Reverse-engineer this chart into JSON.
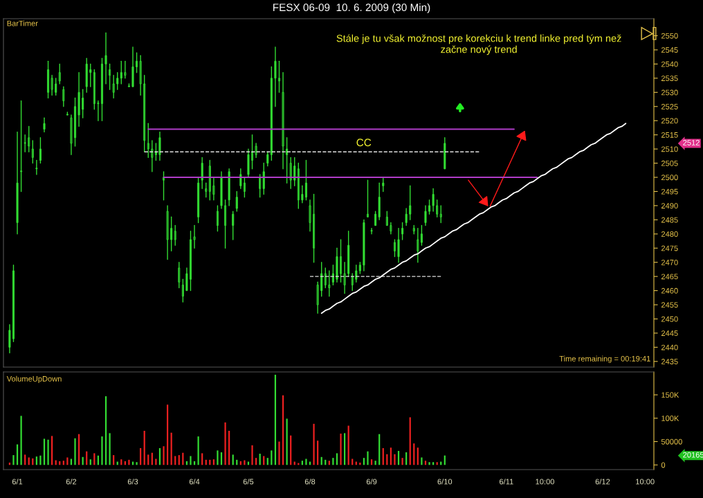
{
  "chart_data": [
    {
      "type": "candlestick",
      "title": "FESX 06-09  10. 6. 2009 (30 Min)",
      "color": "#33dd33",
      "categories": [
        null,
        null,
        null,
        null,
        null,
        null,
        null,
        null,
        null,
        null,
        null,
        null,
        null,
        null,
        null,
        null,
        null,
        null,
        null,
        null,
        null,
        null,
        null,
        null,
        null,
        null,
        null,
        null,
        null,
        null,
        null,
        null,
        null,
        null,
        null,
        null,
        null,
        null,
        null,
        null,
        null,
        null,
        null,
        null,
        null,
        null,
        null,
        null,
        null,
        null,
        null,
        null,
        null,
        null,
        null,
        null,
        null,
        null,
        null,
        null,
        null,
        null,
        null,
        null,
        null,
        null,
        null,
        null,
        null,
        null,
        null,
        null,
        null,
        null,
        null,
        null,
        null,
        null,
        null,
        null,
        null,
        null,
        null,
        null,
        null,
        null,
        null,
        null,
        null,
        null,
        null,
        null,
        null,
        null,
        null,
        null,
        null,
        null,
        null,
        null,
        null,
        null,
        null,
        null,
        null,
        null,
        null,
        null,
        null,
        null,
        null,
        null,
        null,
        null,
        null,
        null,
        null,
        null,
        null,
        null,
        null,
        null,
        null,
        null,
        null,
        null,
        null,
        null,
        null,
        null,
        null,
        null,
        null,
        null,
        null,
        null,
        null,
        null,
        null,
        null,
        null,
        null,
        null,
        null,
        null,
        null,
        null,
        null,
        null,
        null,
        null,
        null,
        null,
        null,
        null,
        null,
        null,
        null,
        null,
        null,
        null,
        null,
        null,
        null,
        null,
        null,
        null
      ],
      "ohlc": [
        [
          2440,
          2448,
          2438,
          2446
        ],
        [
          2443,
          2469,
          2442,
          2467
        ],
        [
          2484,
          2516,
          2480,
          2498
        ],
        [
          2502,
          2527,
          2495,
          2502
        ],
        [
          2512,
          2515,
          2509,
          2512
        ],
        [
          2514,
          2518,
          2509,
          2511
        ],
        [
          2510,
          2513,
          2505,
          2507
        ],
        [
          2503,
          2506,
          2501,
          2503
        ],
        [
          2506,
          2514,
          2505,
          2510
        ],
        [
          2517,
          2521,
          2516,
          2519
        ],
        [
          2530,
          2541,
          2528,
          2538
        ],
        [
          2535,
          2536,
          2529,
          2531
        ],
        [
          2530,
          2535,
          2529,
          2533
        ],
        [
          2537,
          2540,
          2533,
          2534
        ],
        [
          2531,
          2532,
          2525,
          2527
        ],
        [
          2522,
          2523,
          2522,
          2522
        ],
        [
          2521,
          2522,
          2508,
          2512
        ],
        [
          2514,
          2528,
          2511,
          2525
        ],
        [
          2522,
          2537,
          2518,
          2530
        ],
        [
          2524,
          2531,
          2521,
          2528
        ],
        [
          2532,
          2542,
          2530,
          2540
        ],
        [
          2537,
          2540,
          2532,
          2538
        ],
        [
          2537,
          2538,
          2524,
          2526
        ],
        [
          2526,
          2527,
          2520,
          2526
        ],
        [
          2526,
          2542,
          2520,
          2540
        ],
        [
          2540,
          2551,
          2533,
          2543
        ],
        [
          2538,
          2540,
          2531,
          2536
        ],
        [
          2533,
          2536,
          2528,
          2530
        ],
        [
          2533,
          2537,
          2531,
          2535
        ],
        [
          2535,
          2541,
          2533,
          2537
        ],
        [
          2537,
          2541,
          2535,
          2536
        ],
        [
          2532,
          2533,
          2532,
          2532
        ],
        [
          2532,
          2546,
          2532,
          2539
        ],
        [
          2539,
          2544,
          2537,
          2541
        ],
        [
          2541,
          2543,
          2529,
          2533
        ],
        [
          2533,
          2536,
          2509,
          2513
        ],
        [
          2512,
          2519,
          2507,
          2510
        ],
        [
          2510,
          2513,
          2502,
          2507
        ],
        [
          2508,
          2512,
          2506,
          2509
        ],
        [
          2508,
          2516,
          2506,
          2514
        ],
        [
          2500,
          2502,
          2492,
          2499
        ],
        [
          2488,
          2490,
          2471,
          2478
        ],
        [
          2478,
          2486,
          2474,
          2482
        ],
        [
          2481,
          2483,
          2476,
          2478
        ],
        [
          2468,
          2470,
          2461,
          2463
        ],
        [
          2462,
          2464,
          2456,
          2458
        ],
        [
          2460,
          2468,
          2460,
          2466
        ],
        [
          2464,
          2481,
          2460,
          2478
        ],
        [
          2479,
          2483,
          2475,
          2478
        ],
        [
          2486,
          2500,
          2484,
          2498
        ],
        [
          2499,
          2507,
          2496,
          2505
        ],
        [
          2496,
          2498,
          2493,
          2495
        ],
        [
          2504,
          2506,
          2492,
          2495
        ],
        [
          2497,
          2500,
          2492,
          2494
        ],
        [
          2488,
          2490,
          2481,
          2483
        ],
        [
          2490,
          2502,
          2489,
          2500
        ],
        [
          2490,
          2492,
          2475,
          2483
        ],
        [
          2492,
          2503,
          2490,
          2502
        ],
        [
          2483,
          2488,
          2478,
          2487
        ],
        [
          2489,
          2495,
          2488,
          2493
        ],
        [
          2497,
          2503,
          2496,
          2501
        ],
        [
          2498,
          2500,
          2493,
          2495
        ],
        [
          2501,
          2510,
          2500,
          2508
        ],
        [
          2509,
          2515,
          2503,
          2506
        ],
        [
          2511,
          2512,
          2507,
          2508
        ],
        [
          2500,
          2501,
          2493,
          2496
        ],
        [
          2496,
          2505,
          2494,
          2502
        ],
        [
          2505,
          2509,
          2504,
          2508
        ],
        [
          2508,
          2539,
          2506,
          2535
        ],
        [
          2535,
          2546,
          2525,
          2541
        ],
        [
          2535,
          2541,
          2530,
          2534
        ],
        [
          2530,
          2537,
          2503,
          2511
        ],
        [
          2508,
          2514,
          2498,
          2510
        ],
        [
          2505,
          2507,
          2496,
          2499
        ],
        [
          2499,
          2507,
          2497,
          2504
        ],
        [
          2503,
          2505,
          2489,
          2492
        ],
        [
          2492,
          2497,
          2491,
          2494
        ],
        [
          2493,
          2506,
          2492,
          2498
        ],
        [
          2490,
          2492,
          2481,
          2484
        ],
        [
          2487,
          2494,
          2470,
          2475
        ],
        [
          2462,
          2463,
          2452,
          2455
        ],
        [
          2460,
          2470,
          2458,
          2466
        ],
        [
          2466,
          2468,
          2461,
          2462
        ],
        [
          2462,
          2467,
          2458,
          2461
        ],
        [
          2463,
          2469,
          2462,
          2466
        ],
        [
          2464,
          2475,
          2463,
          2472
        ],
        [
          2472,
          2478,
          2463,
          2466
        ],
        [
          2466,
          2470,
          2459,
          2462
        ],
        [
          2466,
          2481,
          2465,
          2476
        ],
        [
          2465,
          2466,
          2460,
          2462
        ],
        [
          2464,
          2469,
          2463,
          2467
        ],
        [
          2467,
          2470,
          2466,
          2469
        ],
        [
          2469,
          2485,
          2467,
          2484
        ],
        [
          2487,
          2499,
          2486,
          2486
        ],
        [
          2481,
          2482,
          2480,
          2481
        ],
        [
          2483,
          2488,
          2483,
          2487
        ],
        [
          2486,
          2498,
          2485,
          2493
        ],
        [
          2497,
          2500,
          2495,
          2498
        ],
        [
          2486,
          2488,
          2483,
          2483
        ],
        [
          2483,
          2484,
          2480,
          2481
        ],
        [
          2477,
          2478,
          2472,
          2474
        ],
        [
          2472,
          2482,
          2470,
          2478
        ],
        [
          2480,
          2484,
          2478,
          2482
        ],
        [
          2484,
          2489,
          2483,
          2487
        ],
        [
          2487,
          2497,
          2485,
          2490
        ],
        [
          2482,
          2483,
          2480,
          2481
        ],
        [
          2478,
          2482,
          2470,
          2474
        ],
        [
          2477,
          2483,
          2476,
          2480
        ],
        [
          2484,
          2490,
          2483,
          2488
        ],
        [
          2488,
          2492,
          2487,
          2490
        ],
        [
          2490,
          2496,
          2488,
          2494
        ],
        [
          2490,
          2492,
          2486,
          2487
        ],
        [
          2487,
          2490,
          2484,
          2486
        ],
        [
          2503,
          2514,
          2503,
          2512
        ],
        null,
        null,
        null,
        null,
        null,
        null,
        null,
        null,
        null,
        null,
        null,
        null,
        null,
        null,
        null,
        null,
        null,
        null,
        null,
        null,
        null,
        null,
        null,
        null,
        null,
        null,
        null,
        null,
        null,
        null,
        null,
        null,
        null,
        null,
        null,
        null,
        null,
        null,
        null,
        null,
        null,
        null,
        null,
        null,
        null,
        null,
        null,
        null,
        null,
        null,
        null,
        null,
        null
      ],
      "series": [
        {
          "type": "line",
          "color": "#b03cc8",
          "line_style": "solid",
          "values": [
            null,
            null,
            null,
            null,
            null,
            null,
            null,
            null,
            null,
            null,
            null,
            null,
            null,
            null,
            null,
            null,
            null,
            null,
            null,
            null,
            null,
            null,
            null,
            null,
            null,
            null,
            null,
            null,
            null,
            null,
            null,
            null,
            null,
            null,
            null,
            null,
            2517,
            2517,
            2517,
            2517,
            2517,
            2517,
            2517,
            2517,
            2517,
            2517,
            2517,
            2517,
            2517,
            2517,
            2517,
            2517,
            2517,
            2517,
            2517,
            2517,
            2517,
            2517,
            2517,
            2517,
            2517,
            2517,
            2517,
            2517,
            2517,
            2517,
            2517,
            2517,
            2517,
            2517,
            2517,
            2517,
            2517,
            2517,
            2517,
            2517,
            2517,
            2517,
            2517,
            2517,
            2517,
            2517,
            2517,
            2517,
            2517,
            2517,
            2517,
            2517,
            2517,
            2517,
            2517,
            2517,
            2517,
            2517,
            2517,
            2517,
            2517,
            2517,
            2517,
            2517,
            2517,
            2517,
            2517,
            2517,
            2517,
            2517,
            2517,
            2517,
            2517,
            2517,
            2517,
            2517,
            2517,
            2517,
            2517,
            2517,
            2517,
            2517,
            2517,
            2517,
            2517,
            2517,
            2517,
            2517,
            2517,
            2517,
            2517,
            2517,
            2517,
            2517,
            2517,
            2517,
            null,
            null,
            null,
            null,
            null,
            null,
            null,
            null,
            null,
            null,
            null,
            null,
            null,
            null,
            null,
            null,
            null,
            null,
            null,
            null,
            null,
            null,
            null,
            null,
            null,
            null,
            null,
            null,
            null,
            null,
            null,
            null,
            null,
            null,
            null
          ]
        },
        {
          "type": "line",
          "color": "#b03cc8",
          "line_style": "solid",
          "values": [
            null,
            null,
            null,
            null,
            null,
            null,
            null,
            null,
            null,
            null,
            null,
            null,
            null,
            null,
            null,
            null,
            null,
            null,
            null,
            null,
            null,
            null,
            null,
            null,
            null,
            null,
            null,
            null,
            null,
            null,
            null,
            null,
            null,
            null,
            null,
            null,
            null,
            null,
            null,
            null,
            2500,
            2500,
            2500,
            2500,
            2500,
            2500,
            2500,
            2500,
            2500,
            2500,
            2500,
            2500,
            2500,
            2500,
            2500,
            2500,
            2500,
            2500,
            2500,
            2500,
            2500,
            2500,
            2500,
            2500,
            2500,
            2500,
            2500,
            2500,
            2500,
            2500,
            2500,
            2500,
            2500,
            2500,
            2500,
            2500,
            2500,
            2500,
            2500,
            2500,
            2500,
            2500,
            2500,
            2500,
            2500,
            2500,
            2500,
            2500,
            2500,
            2500,
            2500,
            2500,
            2500,
            2500,
            2500,
            2500,
            2500,
            2500,
            2500,
            2500,
            2500,
            2500,
            2500,
            2500,
            2500,
            2500,
            2500,
            2500,
            2500,
            2500,
            2500,
            2500,
            2500,
            2500,
            2500,
            2500,
            2500,
            2500,
            2500,
            2500,
            2500,
            2500,
            2500,
            2500,
            2500,
            2500,
            2500,
            2500,
            2500,
            2500,
            2500,
            2500,
            2500,
            2500,
            2500,
            2500,
            2500,
            2500,
            null,
            null,
            null,
            null,
            null,
            null,
            null,
            null,
            null,
            null,
            null,
            null,
            null,
            null,
            null,
            null,
            null,
            null,
            null,
            null,
            null,
            null,
            null,
            null,
            null,
            null,
            null,
            null,
            null
          ]
        },
        {
          "type": "line",
          "color": "#e0e0e0",
          "line_style": "dashed",
          "values": [
            null,
            null,
            null,
            null,
            null,
            null,
            null,
            null,
            null,
            null,
            null,
            null,
            null,
            null,
            null,
            null,
            null,
            null,
            null,
            null,
            null,
            null,
            null,
            null,
            null,
            null,
            null,
            null,
            null,
            null,
            null,
            null,
            null,
            null,
            null,
            2509,
            2509,
            2509,
            2509,
            2509,
            2509,
            2509,
            2509,
            2509,
            2509,
            2509,
            2509,
            2509,
            2509,
            2509,
            2509,
            2509,
            2509,
            2509,
            2509,
            2509,
            2509,
            2509,
            2509,
            2509,
            2509,
            2509,
            2509,
            2509,
            2509,
            2509,
            2509,
            2509,
            2509,
            2509,
            2509,
            2509,
            2509,
            2509,
            2509,
            2509,
            2509,
            2509,
            2509,
            2509,
            2509,
            2509,
            2509,
            2509,
            2509,
            2509,
            2509,
            2509,
            2509,
            2509,
            2509,
            2509,
            2509,
            2509,
            2509,
            2509,
            2509,
            2509,
            2509,
            2509,
            2509,
            2509,
            2509,
            2509,
            2509,
            2509,
            2509,
            2509,
            2509,
            2509,
            2509,
            2509,
            2509,
            2509,
            2509,
            2509,
            2509,
            2509,
            2509,
            2509,
            2509,
            2509,
            2509,
            null,
            null,
            null,
            null,
            null,
            null,
            null,
            null,
            null,
            null,
            null,
            null,
            null,
            null,
            null,
            null,
            null,
            null,
            null,
            null,
            null,
            null,
            null,
            null,
            null,
            null,
            null,
            null,
            null,
            null,
            null,
            null,
            null,
            null,
            null,
            null,
            null,
            null,
            null,
            null,
            null,
            null,
            null,
            null
          ]
        },
        {
          "type": "line",
          "color": "#e0e0e0",
          "line_style": "dashed",
          "values": [
            null,
            null,
            null,
            null,
            null,
            null,
            null,
            null,
            null,
            null,
            null,
            null,
            null,
            null,
            null,
            null,
            null,
            null,
            null,
            null,
            null,
            null,
            null,
            null,
            null,
            null,
            null,
            null,
            null,
            null,
            null,
            null,
            null,
            null,
            null,
            null,
            null,
            null,
            null,
            null,
            null,
            null,
            null,
            null,
            null,
            null,
            null,
            null,
            null,
            null,
            null,
            null,
            null,
            null,
            null,
            null,
            null,
            null,
            null,
            null,
            null,
            null,
            null,
            null,
            null,
            null,
            null,
            null,
            null,
            null,
            null,
            null,
            null,
            null,
            null,
            null,
            null,
            null,
            2465,
            2465,
            2465,
            2465,
            2465,
            2465,
            2465,
            2465,
            2465,
            2465,
            2465,
            2465,
            2465,
            2465,
            2465,
            2465,
            2465,
            2465,
            2465,
            2465,
            2465,
            2465,
            2465,
            2465,
            2465,
            2465,
            2465,
            2465,
            2465,
            2465,
            2465,
            2465,
            2465,
            2465,
            2465,
            null,
            null,
            null,
            null,
            null,
            null,
            null,
            null,
            null,
            null,
            null,
            null,
            null,
            null,
            null,
            null,
            null,
            null,
            null,
            null,
            null,
            null,
            null,
            null,
            null,
            null,
            null,
            null,
            null,
            null,
            null,
            null,
            null,
            null,
            null,
            null,
            null,
            null,
            null,
            null,
            null,
            null,
            null,
            null,
            null,
            null,
            null,
            null,
            null,
            null,
            null,
            null,
            null,
            null
          ]
        },
        {
          "type": "line",
          "color": "#ffffff",
          "line_style": "solid",
          "values": [
            null,
            null,
            null,
            null,
            null,
            null,
            null,
            null,
            null,
            null,
            null,
            null,
            null,
            null,
            null,
            null,
            null,
            null,
            null,
            null,
            null,
            null,
            null,
            null,
            null,
            null,
            null,
            null,
            null,
            null,
            null,
            null,
            null,
            null,
            null,
            null,
            null,
            null,
            null,
            null,
            null,
            null,
            null,
            null,
            null,
            null,
            null,
            null,
            null,
            null,
            null,
            null,
            null,
            null,
            null,
            null,
            null,
            null,
            null,
            null,
            null,
            null,
            null,
            null,
            null,
            null,
            null,
            null,
            null,
            null,
            null,
            null,
            null,
            null,
            null,
            null,
            null,
            null,
            null,
            null,
            null,
            2452,
            2453,
            2453.5,
            2454.5,
            2455.5,
            2456,
            2457,
            2458,
            2459,
            2459.5,
            2460.5,
            2461.5,
            2462,
            2463,
            2464,
            2464.5,
            2465.5,
            2466.5,
            2467.5,
            2468,
            2469,
            2470,
            2470.5,
            2471.5,
            2472.5,
            2473,
            2474,
            2475,
            2475.5,
            2476.5,
            2477.5,
            2478.5,
            2479,
            2480,
            2481,
            2481.5,
            2482.5,
            2483.5,
            2484,
            2485,
            2486,
            2487,
            2487.5,
            2488.5,
            2489.5,
            2490,
            2491,
            2492,
            2492.5,
            2493.5,
            2494.5,
            2495,
            2496,
            2497,
            2498,
            2498.5,
            2499.5,
            2500.5,
            2501,
            2502,
            2503,
            2503.5,
            2504.5,
            2505.5,
            2506.5,
            2507,
            2508,
            2509,
            2509.5,
            2510.5,
            2511.5,
            2512,
            2513,
            2514,
            2515,
            2515.5,
            2516.5,
            2517.5,
            2518,
            2519,
            null,
            null,
            null,
            null,
            null,
            null
          ]
        }
      ],
      "ylim": [
        2433,
        2556
      ],
      "yticks": [
        2435,
        2440,
        2445,
        2450,
        2455,
        2460,
        2465,
        2470,
        2475,
        2480,
        2485,
        2490,
        2495,
        2500,
        2505,
        2510,
        2515,
        2520,
        2525,
        2530,
        2535,
        2540,
        2545,
        2550
      ],
      "tick_labels": "y",
      "annotations": [
        "BarTimer",
        "Stále je tu však možnost pre korekciu k trend linke pred tým než\nzačne nový trend",
        "Time remaining = 00:19:41",
        "CC",
        "2512"
      ]
    },
    {
      "type": "bar",
      "categories": [
        null,
        null,
        "6/1",
        null,
        null,
        null,
        null,
        null,
        null,
        null,
        null,
        null,
        null,
        null,
        null,
        null,
        "6/2",
        null,
        null,
        null,
        null,
        null,
        null,
        null,
        null,
        null,
        null,
        null,
        null,
        null,
        null,
        null,
        "6/3",
        null,
        null,
        null,
        null,
        null,
        null,
        null,
        null,
        null,
        null,
        null,
        null,
        null,
        null,
        null,
        "6/4",
        null,
        null,
        null,
        null,
        null,
        null,
        null,
        null,
        null,
        null,
        null,
        null,
        null,
        "6/5",
        null,
        null,
        null,
        null,
        null,
        null,
        null,
        null,
        null,
        null,
        null,
        null,
        null,
        null,
        null,
        "6/8",
        null,
        null,
        null,
        null,
        null,
        null,
        null,
        null,
        null,
        null,
        null,
        null,
        null,
        null,
        null,
        "6/9",
        null,
        null,
        null,
        null,
        null,
        null,
        null,
        null,
        null,
        null,
        null,
        null,
        null,
        null,
        null,
        null,
        null,
        null,
        "6/10",
        null,
        null,
        null,
        null,
        null,
        null,
        null,
        null,
        null,
        null,
        null,
        null,
        null,
        null,
        null,
        "6/11",
        null,
        null,
        null,
        null,
        null,
        null,
        null,
        null,
        null,
        "10:00",
        null,
        null,
        null,
        null,
        null,
        null,
        null,
        null,
        null,
        null,
        null,
        null,
        null,
        null,
        "6/12",
        null,
        null,
        null,
        null,
        null,
        null,
        null,
        null,
        null,
        null,
        "10:00",
        null
      ],
      "values": [
        5000,
        21000,
        44000,
        105000,
        22000,
        16000,
        14000,
        18000,
        20000,
        56000,
        54000,
        62000,
        10000,
        8000,
        9000,
        16000,
        13000,
        57000,
        66000,
        17000,
        29000,
        12000,
        25000,
        20000,
        61000,
        147000,
        68000,
        21000,
        7000,
        12000,
        8000,
        11000,
        7000,
        6000,
        36000,
        73000,
        22000,
        26000,
        13000,
        36000,
        40000,
        129000,
        69000,
        19000,
        21000,
        26000,
        8000,
        19000,
        8000,
        61000,
        25000,
        11000,
        11000,
        12000,
        31000,
        27000,
        91000,
        73000,
        22000,
        11000,
        8000,
        10000,
        7000,
        42000,
        15000,
        24000,
        19000,
        15000,
        31000,
        193000,
        50000,
        149000,
        99000,
        63000,
        7000,
        4000,
        9000,
        13000,
        7000,
        88000,
        52000,
        17000,
        11000,
        9000,
        15000,
        25000,
        67000,
        68000,
        84000,
        13000,
        7000,
        5000,
        15000,
        29000,
        12000,
        9000,
        66000,
        36000,
        23000,
        37000,
        23000,
        30000,
        15000,
        27000,
        102000,
        46000,
        37000,
        16000,
        9000,
        6000,
        6000,
        6000,
        7000,
        20165,
        null,
        null,
        null,
        null,
        null,
        null,
        null,
        null,
        null,
        null,
        null,
        null,
        null,
        null,
        null,
        null,
        null,
        null,
        null,
        null,
        null,
        null,
        null,
        null,
        null,
        null,
        null,
        null,
        null,
        null,
        null,
        null,
        null,
        null,
        null,
        null,
        null,
        null,
        null,
        null,
        null,
        null,
        null,
        null,
        null,
        null,
        null,
        null,
        null,
        null,
        null,
        null,
        null
      ],
      "colors": [
        "#ee2020",
        "#33dd33",
        "#33dd33",
        "#33dd33",
        "#ee2020",
        "#ee2020",
        "#ee2020",
        "#33dd33",
        "#33dd33",
        "#33dd33",
        "#33dd33",
        "#ee2020",
        "#ee2020",
        "#ee2020",
        "#ee2020",
        "#ee2020",
        "#33dd33",
        "#33dd33",
        "#ee2020",
        "#33dd33",
        "#ee2020",
        "#33dd33",
        "#ee2020",
        "#33dd33",
        "#33dd33",
        "#33dd33",
        "#33dd33",
        "#ee2020",
        "#33dd33",
        "#ee2020",
        "#ee2020",
        "#ee2020",
        "#33dd33",
        "#33dd33",
        "#ee2020",
        "#ee2020",
        "#ee2020",
        "#ee2020",
        "#ee2020",
        "#33dd33",
        "#ee2020",
        "#ee2020",
        "#ee2020",
        "#ee2020",
        "#ee2020",
        "#ee2020",
        "#33dd33",
        "#33dd33",
        "#33dd33",
        "#33dd33",
        "#ee2020",
        "#ee2020",
        "#ee2020",
        "#ee2020",
        "#33dd33",
        "#33dd33",
        "#ee2020",
        "#ee2020",
        "#33dd33",
        "#33dd33",
        "#ee2020",
        "#ee2020",
        "#33dd33",
        "#ee2020",
        "#ee2020",
        "#33dd33",
        "#ee2020",
        "#33dd33",
        "#33dd33",
        "#33dd33",
        "#ee2020",
        "#ee2020",
        "#33dd33",
        "#ee2020",
        "#ee2020",
        "#ee2020",
        "#33dd33",
        "#33dd33",
        "#33dd33",
        "#ee2020",
        "#ee2020",
        "#33dd33",
        "#33dd33",
        "#ee2020",
        "#33dd33",
        "#33dd33",
        "#ee2020",
        "#33dd33",
        "#ee2020",
        "#ee2020",
        "#ee2020",
        "#ee2020",
        "#33dd33",
        "#33dd33",
        "#ee2020",
        "#33dd33",
        "#33dd33",
        "#ee2020",
        "#ee2020",
        "#ee2020",
        "#ee2020",
        "#33dd33",
        "#ee2020",
        "#33dd33",
        "#ee2020",
        "#ee2020",
        "#ee2020",
        "#33dd33",
        "#ee2020",
        "#33dd33",
        "#33dd33",
        "#ee2020",
        "#33dd33",
        "#33dd33",
        null,
        null,
        null,
        null,
        null,
        null,
        null,
        null,
        null,
        null,
        null,
        null,
        null,
        null,
        null,
        null,
        null,
        null,
        null,
        null,
        null,
        null,
        null,
        null,
        null,
        null,
        null,
        null,
        null,
        null,
        null,
        null,
        null,
        null,
        null,
        null,
        null,
        null,
        null,
        null,
        null,
        null,
        null,
        null,
        null,
        null,
        null,
        null,
        null,
        null,
        null,
        null,
        null
      ],
      "ylim": [
        -10000,
        199000
      ],
      "yticks": [
        0,
        50000,
        {
          "value": 100000,
          "label": "100K"
        },
        {
          "value": 150000,
          "label": "150K"
        }
      ],
      "annotations": [
        "VolumeUpDown",
        "20165"
      ]
    }
  ]
}
